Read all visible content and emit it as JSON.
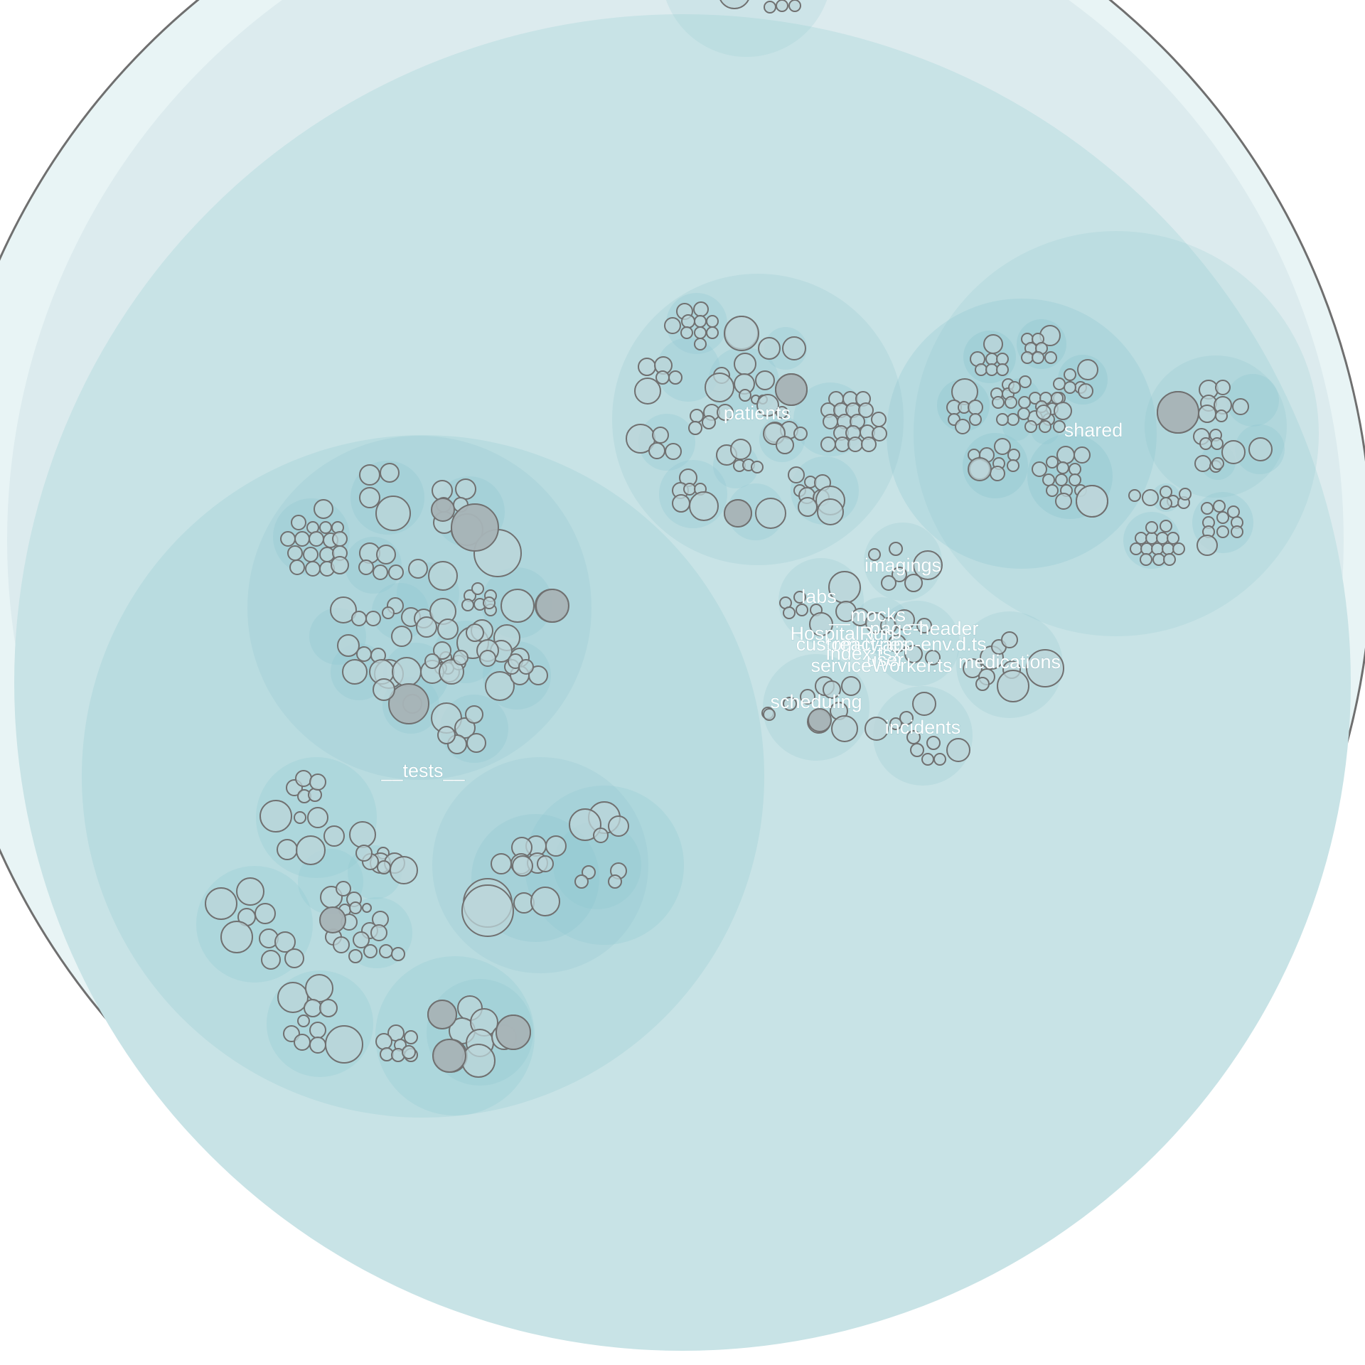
{
  "labels": {
    "tests": "__tests__",
    "patients": "patients",
    "shared": "shared",
    "imagings": "imagings",
    "labs": "labs",
    "mocks": "__mocks__",
    "page_header": "page-header",
    "hospital_run": "HospitalRun",
    "custom_types": "custom-types",
    "react_app_env": "react-app-env.d.ts",
    "index": "index.tsx",
    "user": "user",
    "service_worker": "serviceWorker.ts",
    "medications": "medications",
    "scheduling": "scheduling",
    "incidents": "incidents"
  },
  "colors": {
    "root_fill": "#e8f4f5",
    "root_stroke": "#6f6f6f",
    "dir_fill": "#8cc6cf",
    "file_fill": "#bcd6da",
    "file_grey": "#a7b3b6",
    "file_stroke": "#707070",
    "label": "#ffffff"
  }
}
